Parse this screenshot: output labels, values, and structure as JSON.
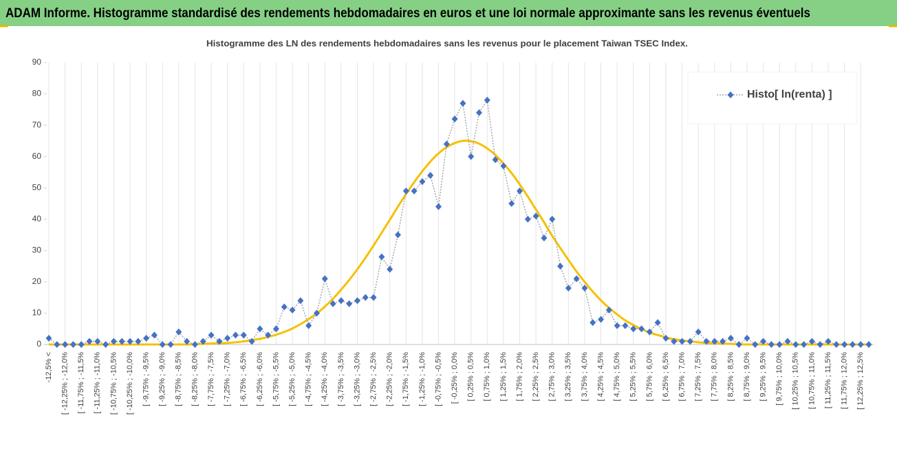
{
  "header": {
    "title": "ADAM Informe. Histogramme standardisé des rendements hebdomadaires en euros et une loi normale approximante sans les revenus éventuels"
  },
  "chart_data": {
    "type": "line",
    "title": "Histogramme  des LN des rendements  hebdomadaires sans les revenus pour le placement Taiwan  TSEC Index.",
    "categories": [
      "-12,5% <",
      null,
      "[ -12,25% ; -12,0%",
      null,
      "[ -11,75% ; -11,5%",
      null,
      "[ -11,25% ; -11,0%",
      null,
      "[ -10,75% ; -10,5%",
      null,
      "[ -10,25% ; -10,0%",
      null,
      "[ -9,75% ; -9,5%",
      null,
      "[ -9,25% ; -9,0%",
      null,
      "[ -8,75% ; -8,5%",
      null,
      "[ -8,25% ; -8,0%",
      null,
      "[ -7,75% ; -7,5%",
      null,
      "[ -7,25% ; -7,0%",
      null,
      "[ -6,75% ; -6,5%",
      null,
      "[ -6,25% ; -6,0%",
      null,
      "[ -5,75% ; -5,5%",
      null,
      "[ -5,25% ; -5,0%",
      null,
      "[ -4,75% ; -4,5%",
      null,
      "[ -4,25% ; -4,0%",
      null,
      "[ -3,75% ; -3,5%",
      null,
      "[ -3,25% ; -3,0%",
      null,
      "[ -2,75% ; -2,5%",
      null,
      "[ -2,25% ; -2,0%",
      null,
      "[ -1,75% ; -1,5%",
      null,
      "[ -1,25% ; -1,0%",
      null,
      "[ -0,75% ; -0,5%",
      null,
      "[ -0,25% ; 0,0%",
      null,
      "[ 0,25% ; 0,5%",
      null,
      "[ 0,75% ; 1,0%",
      null,
      "[ 1,25% ; 1,5%",
      null,
      "[ 1,75% ; 2,0%",
      null,
      "[ 2,25% ; 2,5%",
      null,
      "[ 2,75% ; 3,0%",
      null,
      "[ 3,25% ; 3,5%",
      null,
      "[ 3,75% ; 4,0%",
      null,
      "[ 4,25% ; 4,5%",
      null,
      "[ 4,75% ; 5,0%",
      null,
      "[ 5,25% ; 5,5%",
      null,
      "[ 5,75% ; 6,0%",
      null,
      "[ 6,25% ; 6,5%",
      null,
      "[ 6,75% ; 7,0%",
      null,
      "[ 7,25% ; 7,5%",
      null,
      "[ 7,75% ; 8,0%",
      null,
      "[ 8,25% ; 8,5%",
      null,
      "[ 8,75% ; 9,0%",
      null,
      "[ 9,25% ; 9,5%",
      null,
      "[ 9,75% ; 10,0%",
      null,
      "[ 10,25% ; 10,5%",
      null,
      "[ 10,75% ; 11,0%",
      null,
      "[ 11,25% ; 11,5%",
      null,
      "[ 11,75% ; 12,0%",
      null,
      "[ 12,25% ; 12,5%",
      null
    ],
    "series": [
      {
        "name": "Histo[ ln(renta) ]",
        "color": "#4472c4",
        "line_color": "#a6a6a6",
        "line_style": "dotted",
        "marker": "diamond",
        "values": [
          2,
          0,
          0,
          0,
          0,
          1,
          1,
          0,
          1,
          1,
          1,
          1,
          2,
          3,
          0,
          0,
          4,
          1,
          0,
          1,
          3,
          1,
          2,
          3,
          3,
          1,
          5,
          3,
          5,
          12,
          11,
          14,
          6,
          10,
          21,
          13,
          14,
          13,
          14,
          15,
          15,
          28,
          24,
          35,
          49,
          49,
          52,
          54,
          44,
          64,
          72,
          77,
          60,
          74,
          78,
          59,
          57,
          45,
          49,
          40,
          41,
          34,
          40,
          25,
          18,
          21,
          18,
          7,
          8,
          11,
          6,
          6,
          5,
          5,
          4,
          7,
          2,
          1,
          1,
          1,
          4,
          1,
          1,
          1,
          2,
          0,
          2,
          0,
          1,
          0,
          0,
          1,
          0,
          0,
          1,
          0,
          1,
          0,
          0,
          0,
          0,
          0
        ]
      },
      {
        "color": "#f5c000",
        "line_style": "solid",
        "marker": "none",
        "values": [
          0,
          0,
          0,
          0,
          0,
          0,
          0,
          0,
          0,
          0,
          0,
          0,
          0,
          0,
          0,
          0,
          0,
          0,
          0.1,
          0.2,
          0.3,
          0.4,
          0.5,
          0.7,
          1.0,
          1.4,
          1.8,
          2.4,
          3.1,
          4.0,
          5.1,
          6.5,
          8.1,
          9.9,
          12.1,
          14.6,
          17.5,
          20.6,
          24.0,
          27.7,
          31.6,
          35.7,
          39.8,
          44.0,
          48.0,
          51.8,
          55.3,
          58.4,
          61.0,
          63.0,
          64.3,
          65.0,
          64.9,
          64.1,
          62.6,
          60.5,
          57.8,
          54.7,
          51.1,
          47.2,
          43.1,
          39.0,
          34.7,
          30.8,
          27.0,
          23.3,
          20.0,
          16.9,
          14.1,
          11.7,
          9.6,
          7.7,
          6.2,
          4.9,
          3.8,
          3.0,
          2.3,
          1.7,
          1.3,
          1.0,
          0.7,
          0.5,
          0.4,
          0.3,
          0.2,
          0.1,
          0,
          0,
          0,
          0,
          0,
          0,
          0,
          0,
          0,
          0,
          0,
          0,
          0,
          0,
          0,
          0
        ]
      }
    ],
    "ylim": [
      0,
      90
    ],
    "yticks": [
      0,
      10,
      20,
      30,
      40,
      50,
      60,
      70,
      80,
      90
    ],
    "legend": "upper right"
  }
}
